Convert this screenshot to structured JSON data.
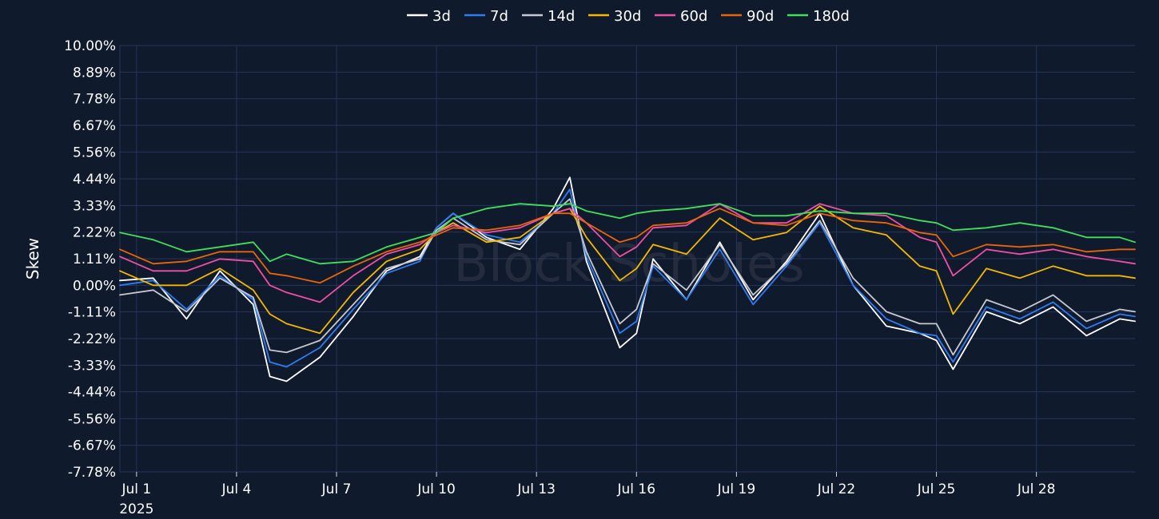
{
  "chart_data": {
    "type": "line",
    "ylabel": "Skew",
    "watermark": "Block Scholes",
    "ylim": [
      -7.78,
      10.0
    ],
    "xlim": [
      "2025-06-30T12:00",
      "2025-07-30T23:00"
    ],
    "yticks": [
      {
        "value": 10.0,
        "label": "10.00%"
      },
      {
        "value": 8.89,
        "label": "8.89%"
      },
      {
        "value": 7.78,
        "label": "7.78%"
      },
      {
        "value": 6.67,
        "label": "6.67%"
      },
      {
        "value": 5.56,
        "label": "5.56%"
      },
      {
        "value": 4.44,
        "label": "4.44%"
      },
      {
        "value": 3.33,
        "label": "3.33%"
      },
      {
        "value": 2.22,
        "label": "2.22%"
      },
      {
        "value": 1.11,
        "label": "1.11%"
      },
      {
        "value": 0.0,
        "label": "0.00%"
      },
      {
        "value": -1.11,
        "label": "-1.11%"
      },
      {
        "value": -2.22,
        "label": "-2.22%"
      },
      {
        "value": -3.33,
        "label": "-3.33%"
      },
      {
        "value": -4.44,
        "label": "-4.44%"
      },
      {
        "value": -5.56,
        "label": "-5.56%"
      },
      {
        "value": -6.67,
        "label": "-6.67%"
      },
      {
        "value": -7.78,
        "label": "-7.78%"
      }
    ],
    "xticks": [
      {
        "date": "2025-07-01",
        "label": "Jul 1",
        "sublabel": "2025"
      },
      {
        "date": "2025-07-04",
        "label": "Jul 4"
      },
      {
        "date": "2025-07-07",
        "label": "Jul 7"
      },
      {
        "date": "2025-07-10",
        "label": "Jul 10"
      },
      {
        "date": "2025-07-13",
        "label": "Jul 13"
      },
      {
        "date": "2025-07-16",
        "label": "Jul 16"
      },
      {
        "date": "2025-07-19",
        "label": "Jul 19"
      },
      {
        "date": "2025-07-22",
        "label": "Jul 22"
      },
      {
        "date": "2025-07-25",
        "label": "Jul 25"
      },
      {
        "date": "2025-07-28",
        "label": "Jul 28"
      }
    ],
    "grid": true,
    "legend_position": "top-center",
    "series": [
      {
        "name": "3d",
        "color": "#ffffff",
        "x": [
          "2025-06-30T12:00",
          "2025-07-01T12:00",
          "2025-07-02T12:00",
          "2025-07-03T12:00",
          "2025-07-04T12:00",
          "2025-07-05T00:00",
          "2025-07-05T12:00",
          "2025-07-06T12:00",
          "2025-07-07T12:00",
          "2025-07-08T12:00",
          "2025-07-09T12:00",
          "2025-07-10T00:00",
          "2025-07-10T12:00",
          "2025-07-11T12:00",
          "2025-07-12T12:00",
          "2025-07-13T12:00",
          "2025-07-14T00:00",
          "2025-07-14T12:00",
          "2025-07-15T12:00",
          "2025-07-16T00:00",
          "2025-07-16T12:00",
          "2025-07-17T12:00",
          "2025-07-18T12:00",
          "2025-07-19T12:00",
          "2025-07-20T12:00",
          "2025-07-21T12:00",
          "2025-07-22T12:00",
          "2025-07-23T12:00",
          "2025-07-24T12:00",
          "2025-07-25T00:00",
          "2025-07-25T12:00",
          "2025-07-26T12:00",
          "2025-07-27T12:00",
          "2025-07-28T12:00",
          "2025-07-29T12:00",
          "2025-07-30T12:00",
          "2025-07-30T23:00"
        ],
        "values": [
          0.2,
          0.3,
          -1.4,
          0.6,
          -0.8,
          -3.8,
          -4.0,
          -3.0,
          -1.3,
          0.6,
          1.2,
          2.4,
          3.0,
          2.0,
          1.5,
          3.2,
          4.5,
          1.0,
          -2.6,
          -2.0,
          1.1,
          -0.6,
          1.8,
          -0.6,
          1.0,
          3.0,
          0.0,
          -1.7,
          -2.0,
          -2.3,
          -3.5,
          -1.1,
          -1.6,
          -0.9,
          -2.1,
          -1.4,
          -1.5
        ]
      },
      {
        "name": "7d",
        "color": "#2f7cf2",
        "x": [
          "2025-06-30T12:00",
          "2025-07-01T12:00",
          "2025-07-02T12:00",
          "2025-07-03T12:00",
          "2025-07-04T12:00",
          "2025-07-05T00:00",
          "2025-07-05T12:00",
          "2025-07-06T12:00",
          "2025-07-07T12:00",
          "2025-07-08T12:00",
          "2025-07-09T12:00",
          "2025-07-10T00:00",
          "2025-07-10T12:00",
          "2025-07-11T12:00",
          "2025-07-12T12:00",
          "2025-07-13T12:00",
          "2025-07-14T00:00",
          "2025-07-14T12:00",
          "2025-07-15T12:00",
          "2025-07-16T00:00",
          "2025-07-16T12:00",
          "2025-07-17T12:00",
          "2025-07-18T12:00",
          "2025-07-19T12:00",
          "2025-07-20T12:00",
          "2025-07-21T12:00",
          "2025-07-22T12:00",
          "2025-07-23T12:00",
          "2025-07-24T12:00",
          "2025-07-25T00:00",
          "2025-07-25T12:00",
          "2025-07-26T12:00",
          "2025-07-27T12:00",
          "2025-07-28T12:00",
          "2025-07-29T12:00",
          "2025-07-30T12:00",
          "2025-07-30T23:00"
        ],
        "values": [
          0.0,
          0.2,
          -1.0,
          0.4,
          -0.6,
          -3.2,
          -3.4,
          -2.6,
          -1.0,
          0.5,
          1.0,
          2.4,
          3.0,
          2.1,
          1.8,
          3.0,
          4.0,
          1.2,
          -2.0,
          -1.5,
          0.8,
          -0.6,
          1.5,
          -0.8,
          0.8,
          2.6,
          0.0,
          -1.4,
          -2.0,
          -2.1,
          -3.2,
          -0.9,
          -1.4,
          -0.7,
          -1.8,
          -1.2,
          -1.3
        ]
      },
      {
        "name": "14d",
        "color": "#c6c9cf",
        "x": [
          "2025-06-30T12:00",
          "2025-07-01T12:00",
          "2025-07-02T12:00",
          "2025-07-03T12:00",
          "2025-07-04T12:00",
          "2025-07-05T00:00",
          "2025-07-05T12:00",
          "2025-07-06T12:00",
          "2025-07-07T12:00",
          "2025-07-08T12:00",
          "2025-07-09T12:00",
          "2025-07-10T00:00",
          "2025-07-10T12:00",
          "2025-07-11T12:00",
          "2025-07-12T12:00",
          "2025-07-13T12:00",
          "2025-07-14T00:00",
          "2025-07-14T12:00",
          "2025-07-15T12:00",
          "2025-07-16T00:00",
          "2025-07-16T12:00",
          "2025-07-17T12:00",
          "2025-07-18T12:00",
          "2025-07-19T12:00",
          "2025-07-20T12:00",
          "2025-07-21T12:00",
          "2025-07-22T12:00",
          "2025-07-23T12:00",
          "2025-07-24T12:00",
          "2025-07-25T00:00",
          "2025-07-25T12:00",
          "2025-07-26T12:00",
          "2025-07-27T12:00",
          "2025-07-28T12:00",
          "2025-07-29T12:00",
          "2025-07-30T12:00",
          "2025-07-30T23:00"
        ],
        "values": [
          -0.4,
          -0.2,
          -1.1,
          0.3,
          -0.5,
          -2.7,
          -2.8,
          -2.3,
          -0.8,
          0.7,
          1.1,
          2.3,
          2.8,
          1.9,
          1.7,
          3.0,
          3.6,
          1.4,
          -1.6,
          -1.0,
          0.9,
          -0.2,
          1.7,
          -0.4,
          0.9,
          2.7,
          0.3,
          -1.1,
          -1.6,
          -1.6,
          -2.9,
          -0.6,
          -1.1,
          -0.4,
          -1.5,
          -1.0,
          -1.1
        ]
      },
      {
        "name": "30d",
        "color": "#f5b800",
        "x": [
          "2025-06-30T12:00",
          "2025-07-01T12:00",
          "2025-07-02T12:00",
          "2025-07-03T12:00",
          "2025-07-04T12:00",
          "2025-07-05T00:00",
          "2025-07-05T12:00",
          "2025-07-06T12:00",
          "2025-07-07T12:00",
          "2025-07-08T12:00",
          "2025-07-09T12:00",
          "2025-07-10T00:00",
          "2025-07-10T12:00",
          "2025-07-11T12:00",
          "2025-07-12T12:00",
          "2025-07-13T12:00",
          "2025-07-14T00:00",
          "2025-07-14T12:00",
          "2025-07-15T12:00",
          "2025-07-16T00:00",
          "2025-07-16T12:00",
          "2025-07-17T12:00",
          "2025-07-18T12:00",
          "2025-07-19T12:00",
          "2025-07-20T12:00",
          "2025-07-21T12:00",
          "2025-07-22T12:00",
          "2025-07-23T12:00",
          "2025-07-24T12:00",
          "2025-07-25T00:00",
          "2025-07-25T12:00",
          "2025-07-26T12:00",
          "2025-07-27T12:00",
          "2025-07-28T12:00",
          "2025-07-29T12:00",
          "2025-07-30T12:00",
          "2025-07-30T23:00"
        ],
        "values": [
          0.6,
          0.0,
          0.0,
          0.7,
          -0.2,
          -1.2,
          -1.6,
          -2.0,
          -0.3,
          1.0,
          1.5,
          2.2,
          2.6,
          1.8,
          2.0,
          3.0,
          3.2,
          2.0,
          0.2,
          0.7,
          1.7,
          1.3,
          2.8,
          1.9,
          2.2,
          3.3,
          2.4,
          2.1,
          0.8,
          0.6,
          -1.2,
          0.7,
          0.3,
          0.8,
          0.4,
          0.4,
          0.3
        ]
      },
      {
        "name": "60d",
        "color": "#ef4fa5",
        "x": [
          "2025-06-30T12:00",
          "2025-07-01T12:00",
          "2025-07-02T12:00",
          "2025-07-03T12:00",
          "2025-07-04T12:00",
          "2025-07-05T00:00",
          "2025-07-05T12:00",
          "2025-07-06T12:00",
          "2025-07-07T12:00",
          "2025-07-08T12:00",
          "2025-07-09T12:00",
          "2025-07-10T00:00",
          "2025-07-10T12:00",
          "2025-07-11T12:00",
          "2025-07-12T12:00",
          "2025-07-13T12:00",
          "2025-07-14T00:00",
          "2025-07-14T12:00",
          "2025-07-15T12:00",
          "2025-07-16T00:00",
          "2025-07-16T12:00",
          "2025-07-17T12:00",
          "2025-07-18T12:00",
          "2025-07-19T12:00",
          "2025-07-20T12:00",
          "2025-07-21T12:00",
          "2025-07-22T12:00",
          "2025-07-23T12:00",
          "2025-07-24T12:00",
          "2025-07-25T00:00",
          "2025-07-25T12:00",
          "2025-07-26T12:00",
          "2025-07-27T12:00",
          "2025-07-28T12:00",
          "2025-07-29T12:00",
          "2025-07-30T12:00",
          "2025-07-30T23:00"
        ],
        "values": [
          1.2,
          0.6,
          0.6,
          1.1,
          1.0,
          0.0,
          -0.3,
          -0.7,
          0.4,
          1.3,
          1.7,
          2.2,
          2.5,
          2.2,
          2.4,
          3.0,
          3.2,
          2.6,
          1.2,
          1.6,
          2.4,
          2.5,
          3.4,
          2.6,
          2.6,
          3.4,
          3.0,
          2.9,
          2.0,
          1.8,
          0.4,
          1.5,
          1.3,
          1.5,
          1.2,
          1.0,
          0.9
        ]
      },
      {
        "name": "90d",
        "color": "#e8650a",
        "x": [
          "2025-06-30T12:00",
          "2025-07-01T12:00",
          "2025-07-02T12:00",
          "2025-07-03T12:00",
          "2025-07-04T12:00",
          "2025-07-05T00:00",
          "2025-07-05T12:00",
          "2025-07-06T12:00",
          "2025-07-07T12:00",
          "2025-07-08T12:00",
          "2025-07-09T12:00",
          "2025-07-10T00:00",
          "2025-07-10T12:00",
          "2025-07-11T12:00",
          "2025-07-12T12:00",
          "2025-07-13T12:00",
          "2025-07-14T00:00",
          "2025-07-14T12:00",
          "2025-07-15T12:00",
          "2025-07-16T00:00",
          "2025-07-16T12:00",
          "2025-07-17T12:00",
          "2025-07-18T12:00",
          "2025-07-19T12:00",
          "2025-07-20T12:00",
          "2025-07-21T12:00",
          "2025-07-22T12:00",
          "2025-07-23T12:00",
          "2025-07-24T12:00",
          "2025-07-25T00:00",
          "2025-07-25T12:00",
          "2025-07-26T12:00",
          "2025-07-27T12:00",
          "2025-07-28T12:00",
          "2025-07-29T12:00",
          "2025-07-30T12:00",
          "2025-07-30T23:00"
        ],
        "values": [
          1.5,
          0.9,
          1.0,
          1.4,
          1.4,
          0.5,
          0.4,
          0.1,
          0.8,
          1.4,
          1.8,
          2.1,
          2.4,
          2.3,
          2.5,
          3.0,
          3.0,
          2.6,
          1.8,
          2.0,
          2.5,
          2.6,
          3.2,
          2.6,
          2.5,
          3.0,
          2.7,
          2.6,
          2.2,
          2.1,
          1.2,
          1.7,
          1.6,
          1.7,
          1.4,
          1.5,
          1.5
        ]
      },
      {
        "name": "180d",
        "color": "#3fe05a",
        "x": [
          "2025-06-30T12:00",
          "2025-07-01T12:00",
          "2025-07-02T12:00",
          "2025-07-03T12:00",
          "2025-07-04T12:00",
          "2025-07-05T00:00",
          "2025-07-05T12:00",
          "2025-07-06T12:00",
          "2025-07-07T12:00",
          "2025-07-08T12:00",
          "2025-07-09T12:00",
          "2025-07-10T00:00",
          "2025-07-10T12:00",
          "2025-07-11T12:00",
          "2025-07-12T12:00",
          "2025-07-13T12:00",
          "2025-07-14T00:00",
          "2025-07-14T12:00",
          "2025-07-15T12:00",
          "2025-07-16T00:00",
          "2025-07-16T12:00",
          "2025-07-17T12:00",
          "2025-07-18T12:00",
          "2025-07-19T12:00",
          "2025-07-20T12:00",
          "2025-07-21T12:00",
          "2025-07-22T12:00",
          "2025-07-23T12:00",
          "2025-07-24T12:00",
          "2025-07-25T00:00",
          "2025-07-25T12:00",
          "2025-07-26T12:00",
          "2025-07-27T12:00",
          "2025-07-28T12:00",
          "2025-07-29T12:00",
          "2025-07-30T12:00",
          "2025-07-30T23:00"
        ],
        "values": [
          2.2,
          1.9,
          1.4,
          1.6,
          1.8,
          1.0,
          1.3,
          0.9,
          1.0,
          1.6,
          2.0,
          2.2,
          2.8,
          3.2,
          3.4,
          3.3,
          3.4,
          3.1,
          2.8,
          3.0,
          3.1,
          3.2,
          3.4,
          2.9,
          2.9,
          3.1,
          3.0,
          3.0,
          2.7,
          2.6,
          2.3,
          2.4,
          2.6,
          2.4,
          2.0,
          2.0,
          1.8
        ]
      }
    ]
  }
}
